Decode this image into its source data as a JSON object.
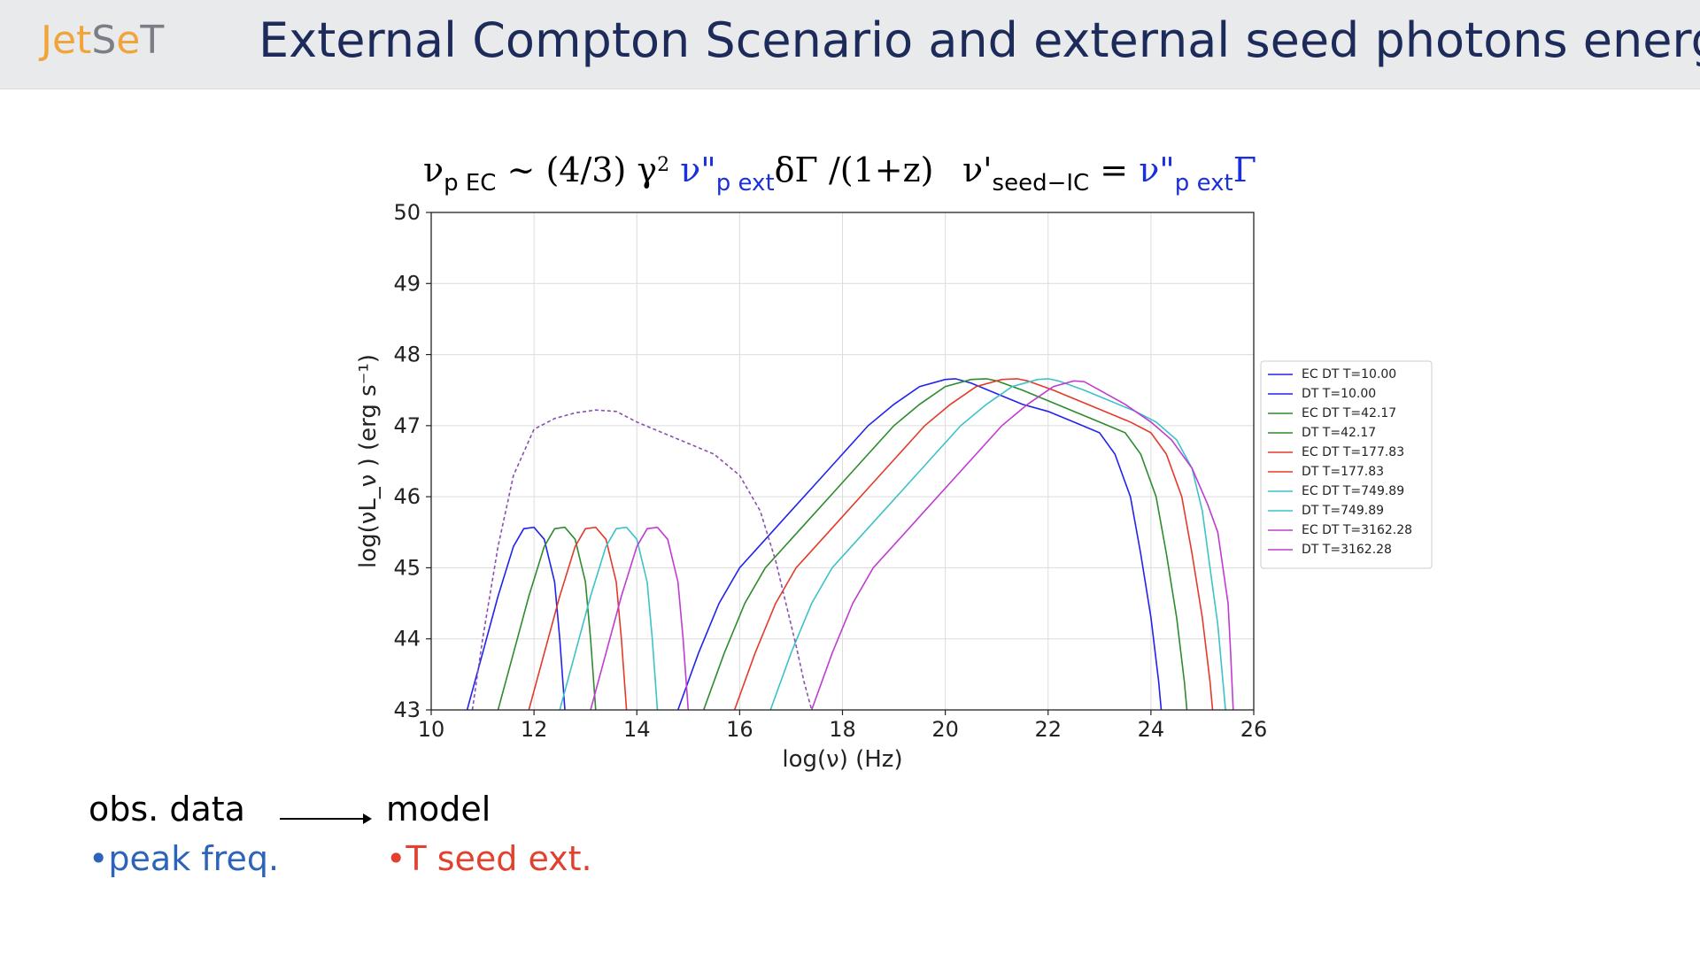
{
  "header": {
    "logo_part1": "Jet",
    "logo_part2": "S",
    "logo_part3": "e",
    "logo_part4": "T",
    "title": "External  Compton Scenario  and external seed photons energy",
    "background": "#e9eaec",
    "title_color": "#1c2b5a"
  },
  "formulas": {
    "f1_nu": "ν",
    "f1_sub": "p EC",
    "f1_mid": " ~ (4/3) γ",
    "f1_sup": "2",
    "f1_blue": " ν\"",
    "f1_blue_sub": "p ext",
    "f1_end": "δΓ /(1+z)",
    "f2_nu": "ν'",
    "f2_sub": "seed−IC",
    "f2_eq": " = ",
    "f2_blue": " ν\"",
    "f2_blue_sub": "p ext",
    "f2_end": "Γ"
  },
  "bottom": {
    "obs_label": "obs. data",
    "model_label": "model",
    "peak_label": "•peak freq.",
    "tseed_label": "•T seed ext."
  },
  "chart_data": {
    "type": "line",
    "xlabel": "log(ν)  (Hz)",
    "ylabel": "log(νL_ν )  (erg  s⁻¹)",
    "xlim": [
      10,
      26
    ],
    "ylim": [
      43,
      50
    ],
    "xticks": [
      10,
      12,
      14,
      16,
      18,
      20,
      22,
      24,
      26
    ],
    "yticks": [
      43,
      44,
      45,
      46,
      47,
      48,
      49,
      50
    ],
    "grid": true,
    "legend_position": "right",
    "series": [
      {
        "name": "EC DT   T=10.00",
        "color": "#2222ee",
        "dash": false,
        "x": [
          14.8,
          15.2,
          15.6,
          16.0,
          16.5,
          17.0,
          17.5,
          18.0,
          18.5,
          19.0,
          19.5,
          20.0,
          20.2,
          20.5,
          21.0,
          21.5,
          22.0,
          22.5,
          23.0,
          23.3,
          23.6,
          23.8,
          24.0,
          24.15,
          24.2
        ],
        "y": [
          43.0,
          43.8,
          44.5,
          45.0,
          45.4,
          45.8,
          46.2,
          46.6,
          47.0,
          47.3,
          47.55,
          47.65,
          47.66,
          47.6,
          47.45,
          47.3,
          47.2,
          47.05,
          46.9,
          46.6,
          46.0,
          45.2,
          44.3,
          43.4,
          43.0
        ]
      },
      {
        "name": "DT   T=10.00",
        "color": "#2222ee",
        "dash": false,
        "x": [
          10.7,
          11.0,
          11.3,
          11.6,
          11.8,
          12.0,
          12.2,
          12.4,
          12.5,
          12.6
        ],
        "y": [
          43.0,
          43.8,
          44.6,
          45.3,
          45.55,
          45.57,
          45.4,
          44.8,
          44.0,
          43.0
        ]
      },
      {
        "name": "EC DT   T=42.17",
        "color": "#2e8b2e",
        "dash": false,
        "x": [
          15.3,
          15.7,
          16.1,
          16.5,
          17.0,
          17.5,
          18.0,
          18.5,
          19.0,
          19.5,
          20.0,
          20.5,
          20.8,
          21.0,
          21.5,
          22.0,
          22.5,
          23.0,
          23.5,
          23.8,
          24.1,
          24.3,
          24.5,
          24.65,
          24.7
        ],
        "y": [
          43.0,
          43.8,
          44.5,
          45.0,
          45.4,
          45.8,
          46.2,
          46.6,
          47.0,
          47.3,
          47.55,
          47.65,
          47.66,
          47.63,
          47.5,
          47.35,
          47.2,
          47.05,
          46.9,
          46.6,
          46.0,
          45.2,
          44.3,
          43.4,
          43.0
        ]
      },
      {
        "name": "DT   T=42.17",
        "color": "#2e8b2e",
        "dash": false,
        "x": [
          11.3,
          11.6,
          11.9,
          12.2,
          12.4,
          12.6,
          12.8,
          13.0,
          13.1,
          13.2
        ],
        "y": [
          43.0,
          43.8,
          44.6,
          45.3,
          45.55,
          45.57,
          45.4,
          44.8,
          44.0,
          43.0
        ]
      },
      {
        "name": "EC DT   T=177.83",
        "color": "#e33a2a",
        "dash": false,
        "x": [
          15.9,
          16.3,
          16.7,
          17.1,
          17.6,
          18.1,
          18.6,
          19.1,
          19.6,
          20.1,
          20.6,
          21.1,
          21.4,
          21.6,
          22.1,
          22.6,
          23.1,
          23.6,
          24.0,
          24.3,
          24.6,
          24.8,
          25.0,
          25.15,
          25.2
        ],
        "y": [
          43.0,
          43.8,
          44.5,
          45.0,
          45.4,
          45.8,
          46.2,
          46.6,
          47.0,
          47.3,
          47.55,
          47.65,
          47.66,
          47.63,
          47.5,
          47.35,
          47.2,
          47.05,
          46.9,
          46.6,
          46.0,
          45.2,
          44.3,
          43.4,
          43.0
        ]
      },
      {
        "name": "DT   T=177.83",
        "color": "#e33a2a",
        "dash": false,
        "x": [
          11.9,
          12.2,
          12.5,
          12.8,
          13.0,
          13.2,
          13.4,
          13.6,
          13.7,
          13.8
        ],
        "y": [
          43.0,
          43.8,
          44.6,
          45.3,
          45.55,
          45.57,
          45.4,
          44.8,
          44.0,
          43.0
        ]
      },
      {
        "name": "EC DT   T=749.89",
        "color": "#3cc2c8",
        "dash": false,
        "x": [
          16.6,
          17.0,
          17.4,
          17.8,
          18.3,
          18.8,
          19.3,
          19.8,
          20.3,
          20.8,
          21.3,
          21.8,
          22.0,
          22.2,
          22.7,
          23.2,
          23.7,
          24.1,
          24.5,
          24.8,
          25.0,
          25.15,
          25.3,
          25.4,
          25.45
        ],
        "y": [
          43.0,
          43.8,
          44.5,
          45.0,
          45.4,
          45.8,
          46.2,
          46.6,
          47.0,
          47.3,
          47.55,
          47.65,
          47.66,
          47.63,
          47.5,
          47.35,
          47.2,
          47.05,
          46.8,
          46.4,
          45.8,
          45.0,
          44.2,
          43.4,
          43.0
        ]
      },
      {
        "name": "DT   T=749.89",
        "color": "#3cc2c8",
        "dash": false,
        "x": [
          12.5,
          12.8,
          13.1,
          13.4,
          13.6,
          13.8,
          14.0,
          14.2,
          14.3,
          14.4
        ],
        "y": [
          43.0,
          43.8,
          44.6,
          45.3,
          45.55,
          45.57,
          45.4,
          44.8,
          44.0,
          43.0
        ]
      },
      {
        "name": "EC DT   T=3162.28",
        "color": "#c03cd0",
        "dash": false,
        "x": [
          17.4,
          17.8,
          18.2,
          18.6,
          19.1,
          19.6,
          20.1,
          20.6,
          21.1,
          21.6,
          22.1,
          22.5,
          22.7,
          23.0,
          23.5,
          24.0,
          24.4,
          24.8,
          25.1,
          25.3,
          25.4,
          25.5,
          25.55,
          25.6
        ],
        "y": [
          43.0,
          43.8,
          44.5,
          45.0,
          45.4,
          45.8,
          46.2,
          46.6,
          47.0,
          47.3,
          47.55,
          47.63,
          47.62,
          47.5,
          47.3,
          47.05,
          46.8,
          46.4,
          45.9,
          45.5,
          45.0,
          44.5,
          43.8,
          43.0
        ]
      },
      {
        "name": "DT   T=3162.28",
        "color": "#c03cd0",
        "dash": false,
        "x": [
          13.1,
          13.4,
          13.7,
          14.0,
          14.2,
          14.4,
          14.6,
          14.8,
          14.9,
          15.0
        ],
        "y": [
          43.0,
          43.8,
          44.6,
          45.3,
          45.55,
          45.57,
          45.4,
          44.8,
          44.0,
          43.0
        ]
      },
      {
        "name": "",
        "color": "#8a4fb0",
        "dash": true,
        "x": [
          10.8,
          11.0,
          11.3,
          11.6,
          12.0,
          12.4,
          12.8,
          13.2,
          13.6,
          14.0,
          14.5,
          15.0,
          15.5,
          16.0,
          16.4,
          16.7,
          16.9,
          17.1,
          17.25,
          17.4
        ],
        "y": [
          43.0,
          44.0,
          45.3,
          46.3,
          46.95,
          47.1,
          47.18,
          47.22,
          47.2,
          47.05,
          46.9,
          46.75,
          46.6,
          46.3,
          45.8,
          45.1,
          44.5,
          43.9,
          43.4,
          43.0
        ]
      }
    ]
  }
}
